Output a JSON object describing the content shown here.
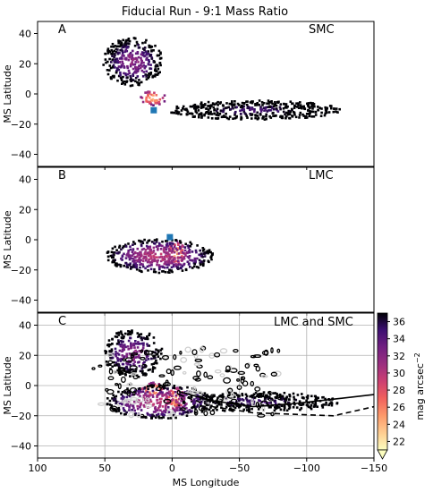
{
  "figure": {
    "title": "Fiducial Run - 9:1 Mass Ratio",
    "xlabel": "MS Longitude",
    "ylabel": "MS Latitude"
  },
  "colorbar": {
    "label": "mag arcsec",
    "label_superscript": "−2",
    "ticks": [
      22,
      24,
      26,
      28,
      30,
      32,
      34,
      36
    ],
    "range": [
      21,
      37
    ],
    "colormap": "magma_r",
    "extend": "min"
  },
  "chart_data": [
    {
      "type": "heatmap",
      "panel_letter": "A",
      "panel_label": "SMC",
      "xlim": [
        100,
        -150
      ],
      "ylim": [
        -48,
        48
      ],
      "xticks": [
        100,
        50,
        0,
        -50,
        -100,
        -150
      ],
      "xtick_labels": [],
      "yticks": [
        -40,
        -20,
        0,
        20,
        40
      ],
      "ytick_labels": [
        "−40",
        "−20",
        "0",
        "20",
        "40"
      ],
      "grid": false,
      "marker": {
        "x": 14,
        "y": -10.5,
        "color": "#1f77b4"
      },
      "description_blobs": [
        {
          "x": 15,
          "y": -2,
          "sx": 6,
          "sy": 3,
          "peak": 23
        },
        {
          "x": 30,
          "y": 22,
          "sx": 14,
          "sy": 10,
          "peak": 31
        },
        {
          "x": -60,
          "y": -10,
          "sx": 40,
          "sy": 4,
          "peak": 34
        }
      ]
    },
    {
      "type": "heatmap",
      "panel_letter": "B",
      "panel_label": "LMC",
      "xlim": [
        100,
        -150
      ],
      "ylim": [
        -48,
        48
      ],
      "xticks": [
        100,
        50,
        0,
        -50,
        -100,
        -150
      ],
      "xtick_labels": [],
      "yticks": [
        -40,
        -20,
        0,
        20,
        40
      ],
      "ytick_labels": [
        "−40",
        "−20",
        "0",
        "20",
        "40"
      ],
      "grid": false,
      "marker": {
        "x": 2,
        "y": 2,
        "color": "#1f77b4"
      },
      "description_blobs": [
        {
          "x": -2,
          "y": -8,
          "sx": 5,
          "sy": 5,
          "peak": 23
        },
        {
          "x": 10,
          "y": -10,
          "sx": 25,
          "sy": 7,
          "peak": 29
        }
      ]
    },
    {
      "type": "heatmap",
      "panel_letter": "C",
      "panel_label": "LMC and SMC",
      "xlim": [
        100,
        -150
      ],
      "ylim": [
        -48,
        48
      ],
      "xticks": [
        100,
        50,
        0,
        -50,
        -100,
        -150
      ],
      "xtick_labels": [
        "100",
        "50",
        "0",
        "−50",
        "−100",
        "−150"
      ],
      "yticks": [
        -40,
        -20,
        0,
        20,
        40
      ],
      "ytick_labels": [
        "−40",
        "−20",
        "0",
        "20",
        "40"
      ],
      "grid": true,
      "overlay_lines": [
        {
          "style": "solid",
          "x": [
            -5,
            -30,
            -60,
            -90,
            -120,
            -150
          ],
          "y": [
            -4,
            -10,
            -14,
            -12,
            -9,
            -6
          ]
        },
        {
          "style": "dashed",
          "x": [
            -5,
            -30,
            -60,
            -90,
            -120,
            -150
          ],
          "y": [
            -6,
            -14,
            -18,
            -19,
            -20,
            -14
          ]
        }
      ]
    }
  ]
}
